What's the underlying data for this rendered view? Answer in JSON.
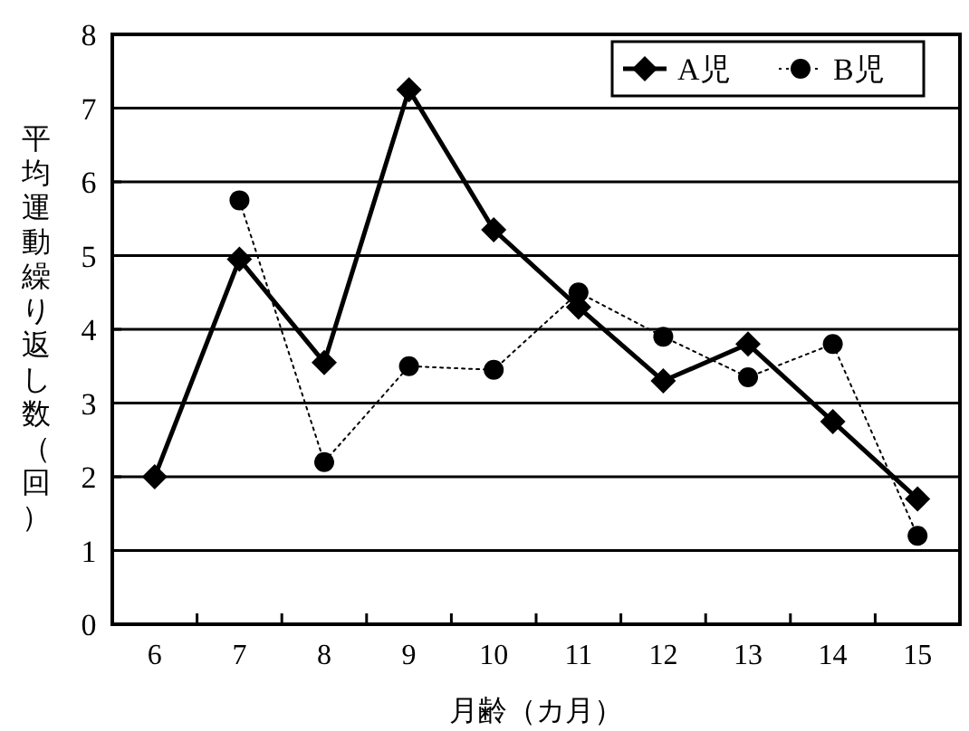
{
  "chart_data": {
    "type": "line",
    "xlabel": "月齢（カ月）",
    "ylabel": "平均運動繰り返し数（回）",
    "categories": [
      "6",
      "7",
      "8",
      "9",
      "10",
      "11",
      "12",
      "13",
      "14",
      "15"
    ],
    "series": [
      {
        "name": "A児",
        "color": "#000000",
        "marker": "diamond",
        "line_style": "solid",
        "values": [
          2.0,
          4.95,
          3.55,
          7.25,
          5.35,
          4.3,
          3.3,
          3.8,
          2.75,
          1.7
        ]
      },
      {
        "name": "B児",
        "color": "#000000",
        "marker": "circle",
        "line_style": "dotted",
        "values": [
          null,
          5.75,
          2.2,
          3.5,
          3.45,
          4.5,
          3.9,
          3.35,
          3.8,
          1.2
        ]
      }
    ],
    "ylim": [
      0,
      8
    ],
    "yticks": [
      0,
      1,
      2,
      3,
      4,
      5,
      6,
      7,
      8
    ],
    "grid": "y",
    "legend": "top right"
  }
}
